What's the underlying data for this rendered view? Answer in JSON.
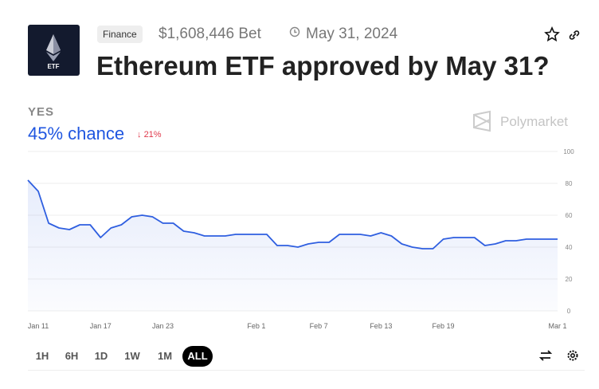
{
  "header": {
    "icon_label": "ETF",
    "tag": "Finance",
    "volume": "$1,608,446 Bet",
    "end_date": "May 31, 2024",
    "title": "Ethereum ETF approved by May 31?"
  },
  "outcome": {
    "label": "YES",
    "chance": "45% chance",
    "change": "21%"
  },
  "brand": "Polymarket",
  "ranges": [
    "1H",
    "6H",
    "1D",
    "1W",
    "1M",
    "ALL"
  ],
  "chart_data": {
    "type": "line",
    "color": "#2f5fe0",
    "categories": [
      null,
      "Jan 11",
      null,
      null,
      null,
      null,
      null,
      "Jan 17",
      null,
      null,
      null,
      null,
      null,
      "Jan 23",
      null,
      null,
      null,
      null,
      null,
      null,
      null,
      null,
      "Feb 1",
      null,
      null,
      null,
      null,
      null,
      "Feb 7",
      null,
      null,
      null,
      null,
      null,
      "Feb 13",
      null,
      null,
      null,
      null,
      null,
      "Feb 19",
      null,
      null,
      null,
      null,
      null,
      null,
      null,
      null,
      null,
      null,
      "Mar 1"
    ],
    "values": [
      82,
      75,
      55,
      52,
      51,
      54,
      54,
      46,
      52,
      54,
      59,
      60,
      59,
      55,
      55,
      50,
      49,
      47,
      47,
      47,
      48,
      48,
      48,
      48,
      41,
      41,
      40,
      42,
      43,
      43,
      48,
      48,
      48,
      47,
      49,
      47,
      42,
      40,
      39,
      39,
      45,
      46,
      46,
      46,
      41,
      42,
      44,
      44,
      45,
      45,
      45,
      45
    ],
    "ylim": [
      0,
      100
    ],
    "yticks": [
      0,
      20,
      40,
      60,
      80,
      100
    ],
    "grid": true
  }
}
